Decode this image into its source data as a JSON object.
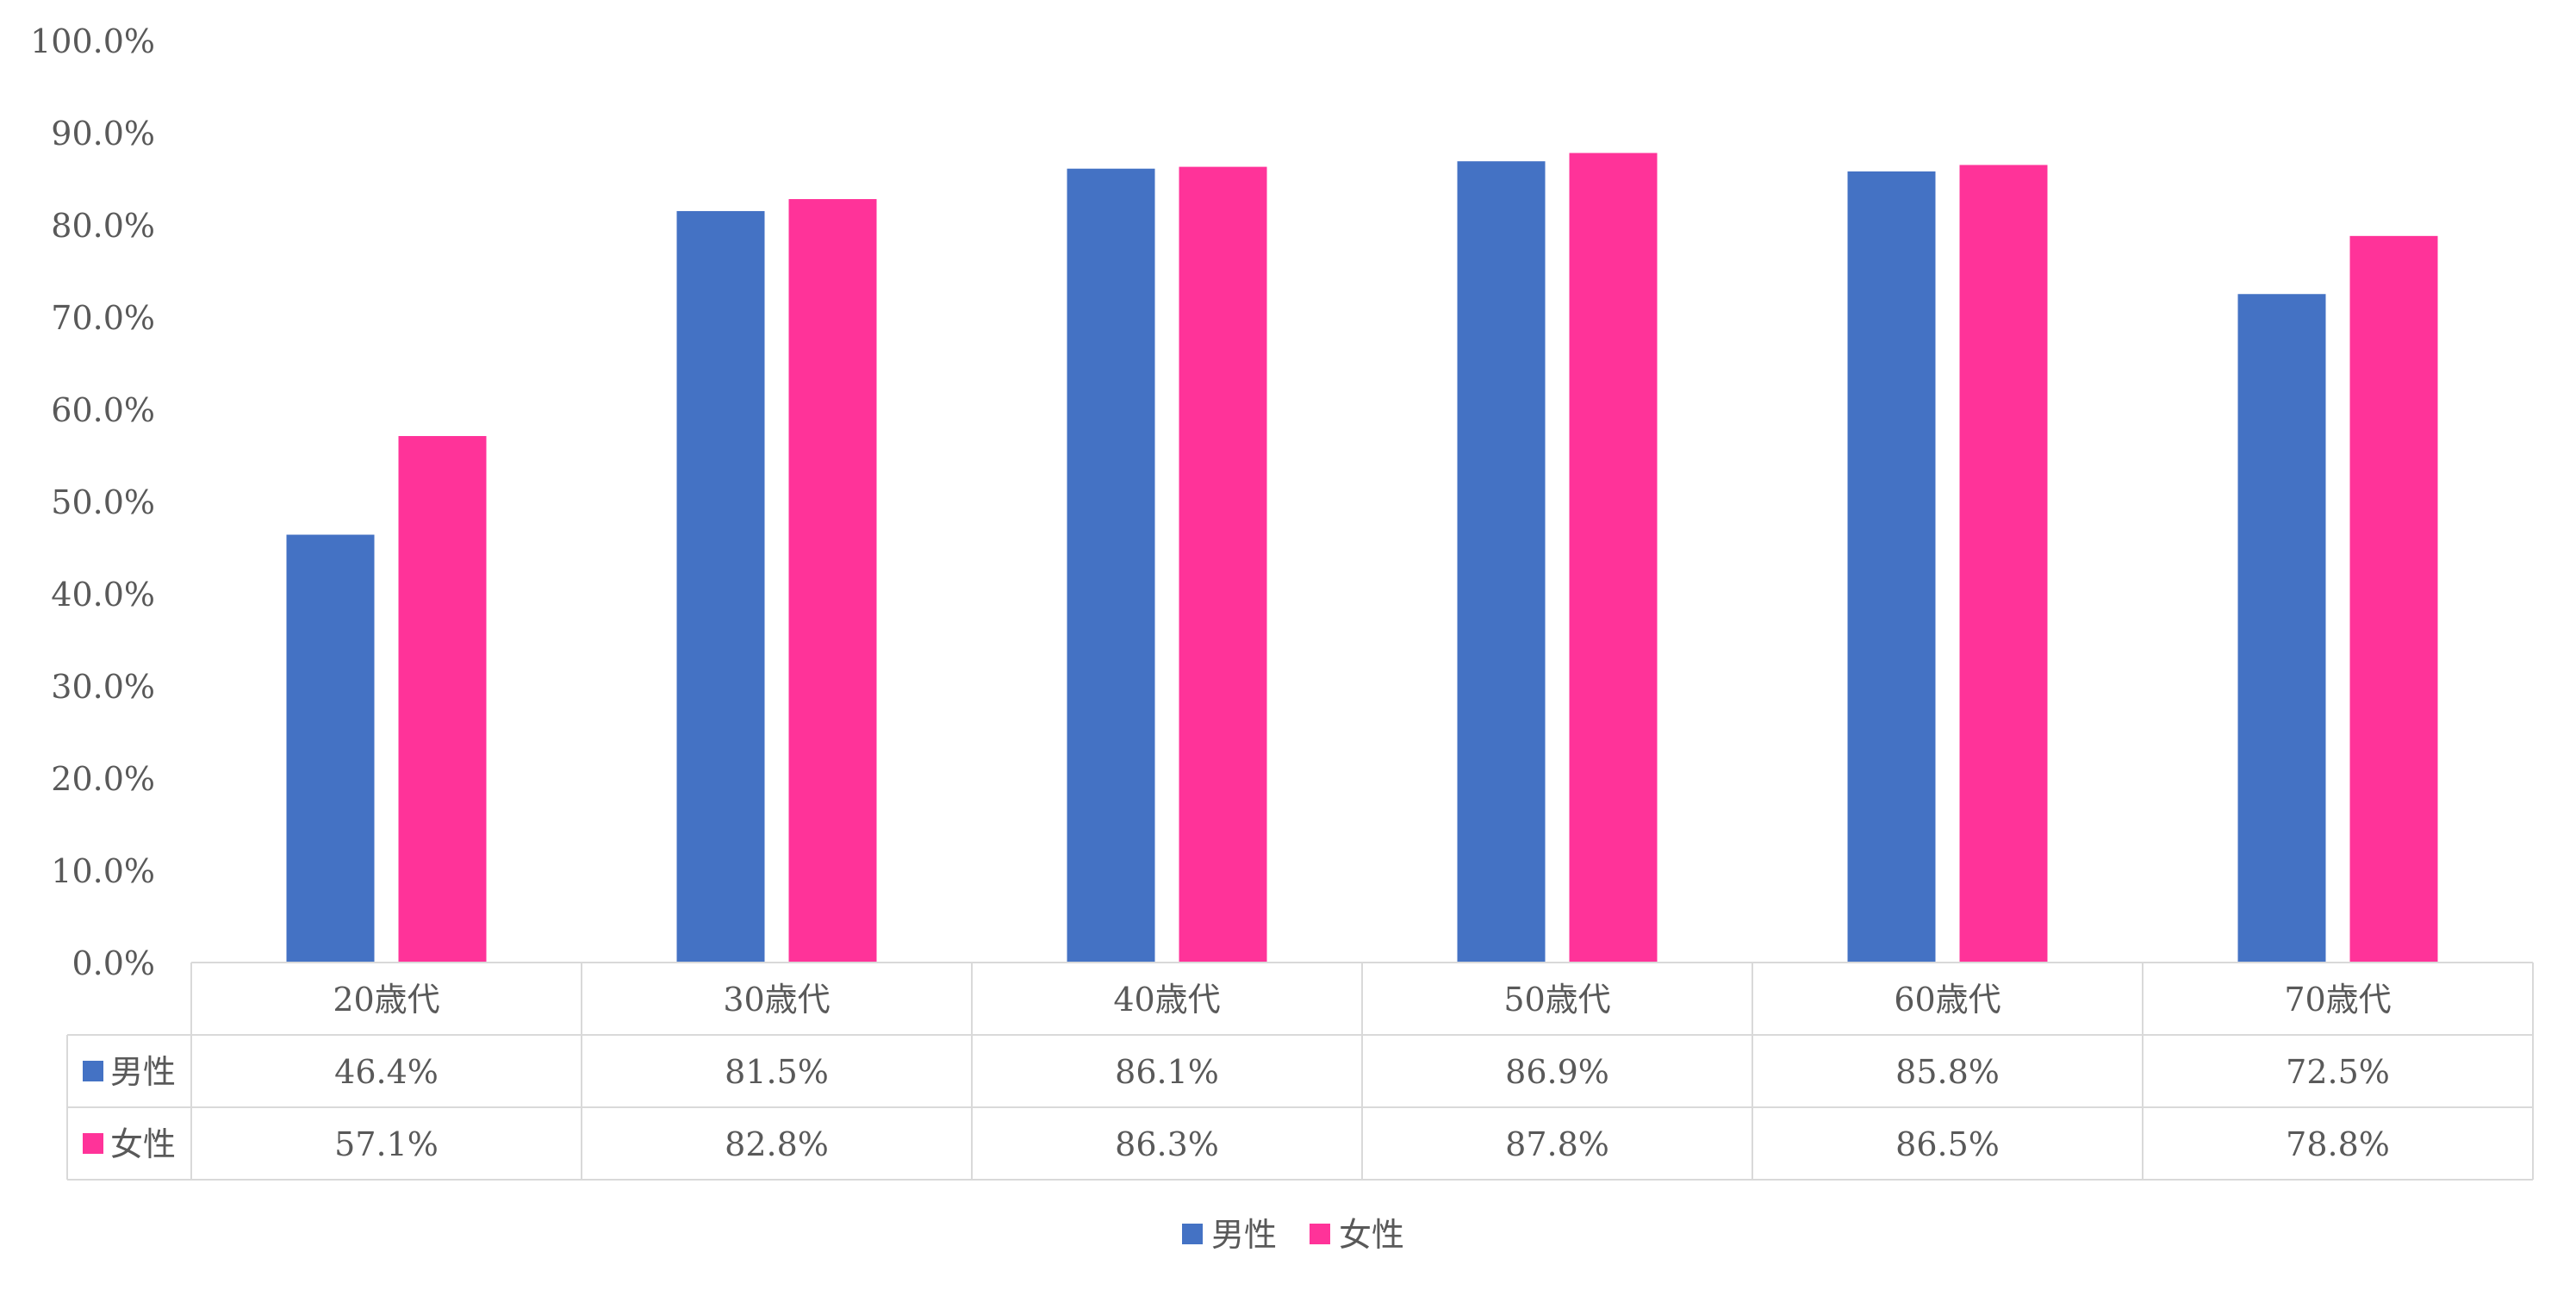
{
  "chart_data": {
    "type": "bar",
    "categories": [
      "20歳代",
      "30歳代",
      "40歳代",
      "50歳代",
      "60歳代",
      "70歳代"
    ],
    "series": [
      {
        "name": "男性",
        "color": "#4472C4",
        "values": [
          46.4,
          81.5,
          86.1,
          86.9,
          85.8,
          72.5
        ],
        "labels": [
          "46.4%",
          "81.5%",
          "86.1%",
          "86.9%",
          "85.8%",
          "72.5%"
        ]
      },
      {
        "name": "女性",
        "color": "#FF3399",
        "values": [
          57.1,
          82.8,
          86.3,
          87.8,
          86.5,
          78.8
        ],
        "labels": [
          "57.1%",
          "82.8%",
          "86.3%",
          "87.8%",
          "86.5%",
          "78.8%"
        ]
      }
    ],
    "ylim": [
      0,
      100
    ],
    "y_ticks": [
      0,
      10,
      20,
      30,
      40,
      50,
      60,
      70,
      80,
      90,
      100
    ],
    "y_tick_labels": [
      "0.0%",
      "10.0%",
      "20.0%",
      "30.0%",
      "40.0%",
      "50.0%",
      "60.0%",
      "70.0%",
      "80.0%",
      "90.0%",
      "100.0%"
    ],
    "grid": false,
    "data_table": true,
    "legend": "bottom-center",
    "title": "",
    "xlabel": "",
    "ylabel": ""
  }
}
